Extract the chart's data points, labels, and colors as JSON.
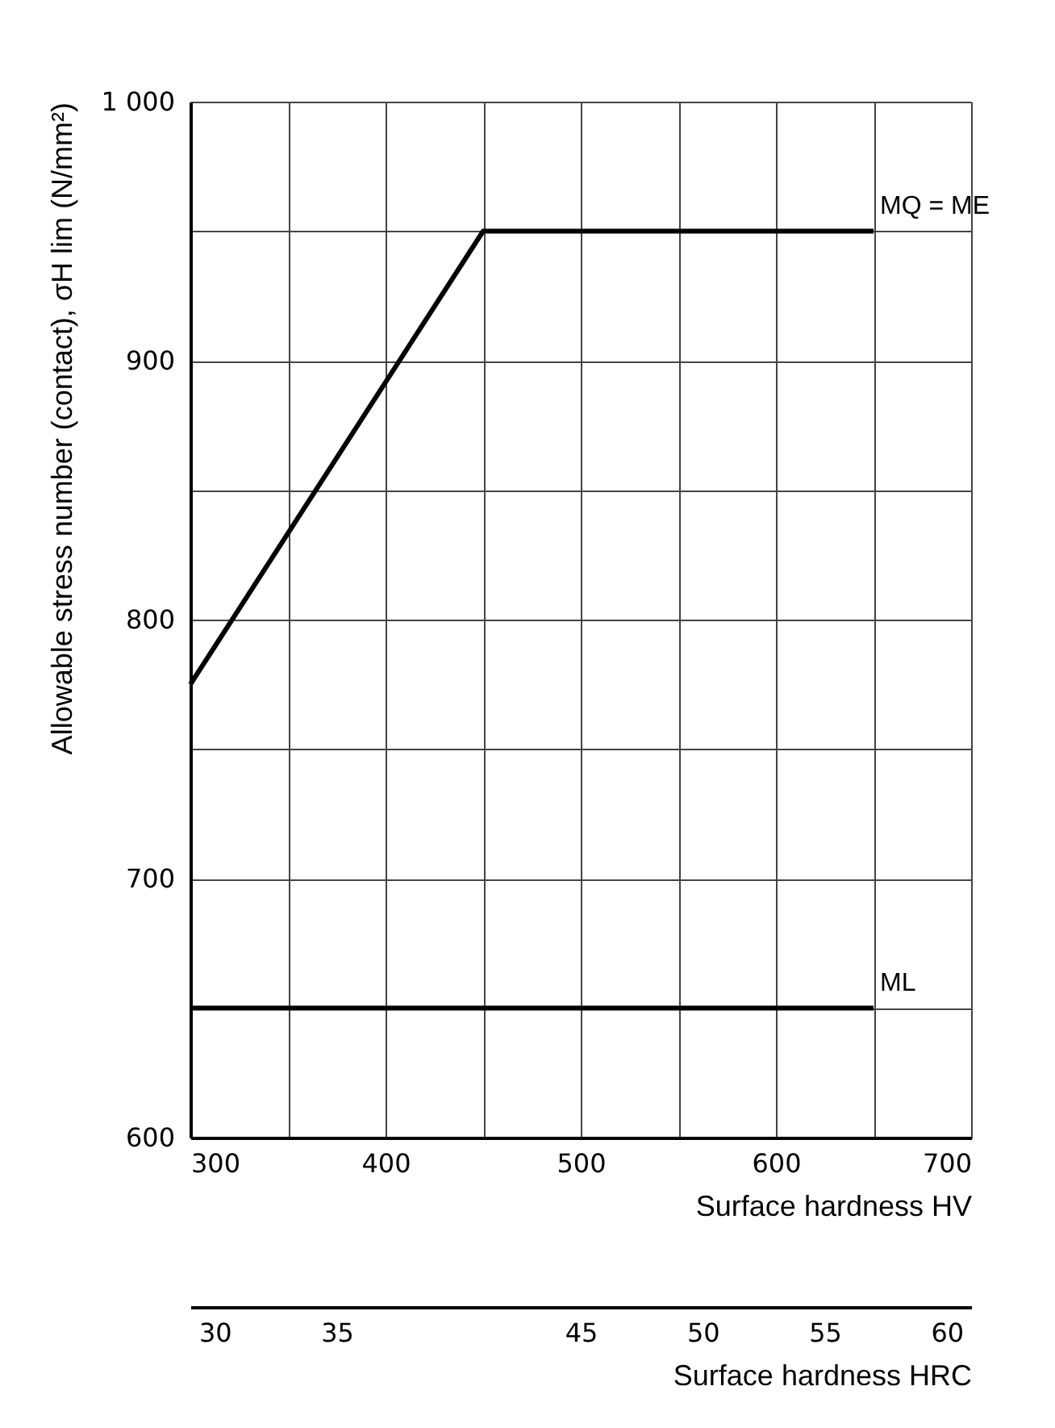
{
  "chart_data": {
    "type": "line",
    "xlabel": "Surface hardness HV",
    "ylabel": "Allowable stress number (contact), σH lim (N/mm²)",
    "x2label": "Surface hardness HRC",
    "series": [
      {
        "name": "MQ = ME",
        "color": "#000000",
        "x": [
          300,
          450,
          650
        ],
        "values": [
          775,
          950,
          950
        ]
      },
      {
        "name": "ML",
        "color": "#000000",
        "x": [
          300,
          650
        ],
        "values": [
          650,
          650
        ]
      }
    ],
    "xlim": [
      300,
      700
    ],
    "xticks": [
      300,
      {
        "value": 350,
        "label": null
      },
      400,
      {
        "value": 450,
        "label": null
      },
      500,
      {
        "value": 550,
        "label": null
      },
      600,
      {
        "value": 650,
        "label": null
      },
      700
    ],
    "ylim": [
      600,
      1000
    ],
    "yticks": [
      600,
      {
        "value": 650,
        "label": null
      },
      700,
      {
        "value": 750,
        "label": null
      },
      800,
      {
        "value": 850,
        "label": null
      },
      900,
      {
        "value": 950,
        "label": null
      },
      {
        "value": 1000,
        "label": "1 000"
      }
    ],
    "x2lim": [
      29,
      61
    ],
    "x2ticks": [
      30,
      35,
      45,
      50,
      55,
      60
    ],
    "grid": true,
    "legend": false,
    "marker": "none",
    "line_style": "solid"
  }
}
